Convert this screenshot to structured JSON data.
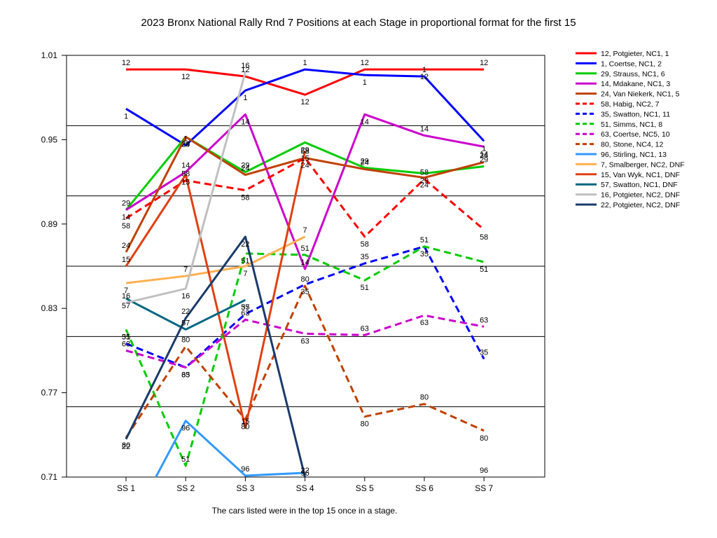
{
  "chart_data": {
    "type": "line",
    "title": "2023 Bronx National Rally Rnd 7  Positions at each Stage in proportional format for the first 15",
    "footnote": "The cars listed were in the top 15 once in a stage.",
    "xlabel": "",
    "ylabel": "",
    "categories": [
      "SS 1",
      "SS 2",
      "SS 3",
      "SS 4",
      "SS 5",
      "SS 6",
      "SS 7"
    ],
    "ylim": [
      0.71,
      1.01
    ],
    "yticks": [
      "0.71",
      "0.77",
      "0.83",
      "0.89",
      "0.95",
      "1.01"
    ],
    "grid": true,
    "legend_position": "right",
    "series": [
      {
        "name": "12, Potgieter, NC1, 1",
        "label": "12",
        "color": "#ff0000",
        "dash": false,
        "values": [
          1.0,
          1.0,
          0.995,
          0.982,
          1.0,
          1.0,
          1.0
        ]
      },
      {
        "name": "1, Coertse, NC1, 2",
        "label": "1",
        "color": "#0000ff",
        "dash": false,
        "values": [
          0.972,
          0.946,
          0.985,
          1.0,
          0.996,
          0.995,
          0.949
        ]
      },
      {
        "name": "29, Strauss, NC1, 6",
        "label": "29",
        "color": "#00cc00",
        "dash": false,
        "values": [
          0.9,
          0.952,
          0.927,
          0.948,
          0.93,
          0.926,
          0.931
        ]
      },
      {
        "name": "14, Mdakane, NC1, 3",
        "label": "14",
        "color": "#cc00cc",
        "dash": false,
        "values": [
          0.9,
          0.927,
          0.968,
          0.858,
          0.968,
          0.953,
          0.945
        ]
      },
      {
        "name": "24, Van Niekerk, NC1, 5",
        "label": "24",
        "color": "#c04000",
        "dash": false,
        "values": [
          0.87,
          0.952,
          0.925,
          0.937,
          0.929,
          0.923,
          0.934
        ]
      },
      {
        "name": "58, Habig, NC2, 7",
        "label": "58",
        "color": "#ff0000",
        "dash": true,
        "values": [
          0.894,
          0.921,
          0.914,
          0.937,
          0.881,
          0.922,
          0.886
        ]
      },
      {
        "name": "35, Swatton, NC1, 11",
        "label": "35",
        "color": "#0000ff",
        "dash": true,
        "values": [
          0.805,
          0.788,
          0.826,
          0.847,
          0.862,
          0.874,
          0.794
        ]
      },
      {
        "name": "51, Simms, NC1, 8",
        "label": "51",
        "color": "#00cc00",
        "dash": true,
        "values": [
          0.815,
          0.718,
          0.869,
          0.868,
          0.85,
          0.874,
          0.863
        ]
      },
      {
        "name": "63, Coertse, NC5, 10",
        "label": "63",
        "color": "#cc00cc",
        "dash": true,
        "values": [
          0.8,
          0.788,
          0.822,
          0.812,
          0.811,
          0.825,
          0.817
        ]
      },
      {
        "name": "80, Stone, NC4, 12",
        "label": "80",
        "color": "#c04000",
        "dash": true,
        "values": [
          0.738,
          0.803,
          0.751,
          0.846,
          0.753,
          0.762,
          0.743
        ]
      },
      {
        "name": "96, Stirling, NC1, 13",
        "label": "96",
        "color": "#3399ff",
        "dash": false,
        "values": [
          0.67,
          0.75,
          0.711,
          0.713,
          null,
          null,
          0.71
        ]
      },
      {
        "name": "7, Smalberger, NC2,  DNF",
        "label": "7",
        "color": "#ffb050",
        "dash": false,
        "values": [
          0.848,
          0.853,
          0.86,
          0.881,
          null,
          null,
          null
        ]
      },
      {
        "name": "15, Van Wyk, NC1,  DNF",
        "label": "15",
        "color": "#e04010",
        "dash": false,
        "values": [
          0.86,
          0.925,
          0.745,
          0.942,
          null,
          null,
          null
        ]
      },
      {
        "name": "57, Swatton, NC1,  DNF",
        "label": "57",
        "color": "#006680",
        "dash": false,
        "values": [
          0.837,
          0.815,
          0.836,
          null,
          null,
          null,
          null
        ]
      },
      {
        "name": "16, Potgieter, NC2,  DNF",
        "label": "16",
        "color": "#c0c0c0",
        "dash": false,
        "values": [
          0.834,
          0.844,
          0.998,
          null,
          null,
          null,
          null
        ]
      },
      {
        "name": "22, Potgieter, NC2,  DNF",
        "label": "22",
        "color": "#1a3a6a",
        "dash": false,
        "values": [
          0.737,
          0.823,
          0.881,
          0.71,
          null,
          null,
          null
        ]
      }
    ]
  }
}
